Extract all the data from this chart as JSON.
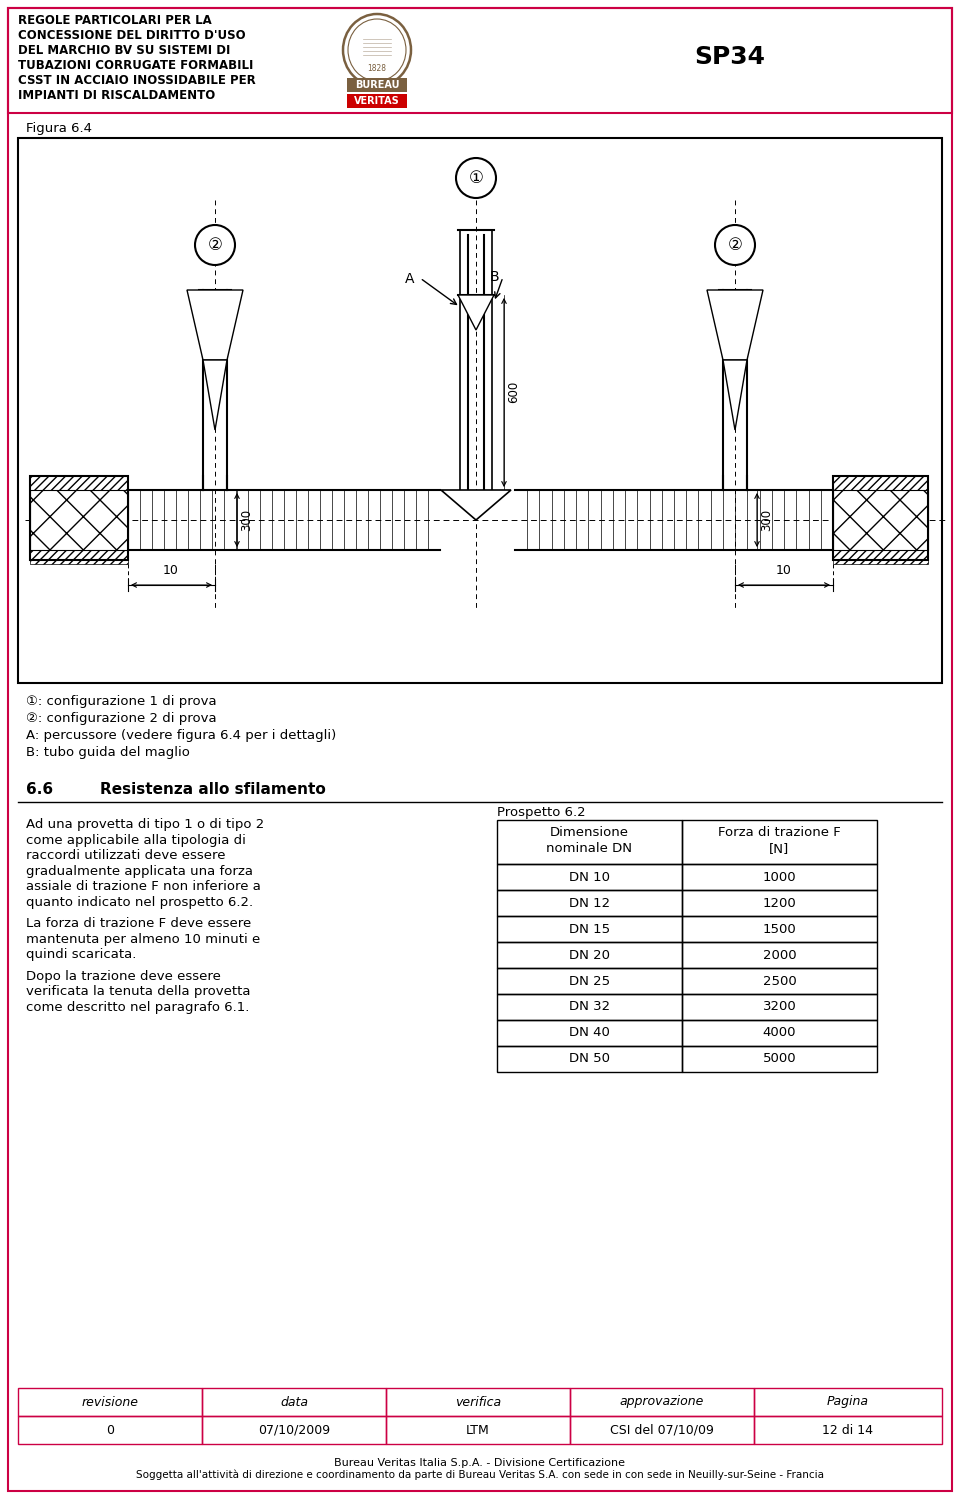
{
  "page_width": 9.6,
  "page_height": 14.99,
  "bg_color": "#ffffff",
  "border_color": "#cc0044",
  "header_text": "REGOLE PARTICOLARI PER LA\nCONCESSIONE DEL DIRITTO D'USO\nDEL MARCHIO BV SU SISTEMI DI\nTUBAZIONI CORRUGATE FORMABILI\nCSST IN ACCIAIO INOSSIDABILE PER\nIMPIANTI DI RISCALDAMENTO",
  "sp_code": "SP34",
  "figure_label": "Figura 6.4",
  "legend_lines": [
    "①: configurazione 1 di prova",
    "②: configurazione 2 di prova",
    "A: percussore (vedere figura 6.4 per i dettagli)",
    "B: tubo guida del maglio"
  ],
  "section_title": "6.6",
  "section_title2": "Resistenza allo sfilamento",
  "body_paragraphs": [
    "Ad una provetta di tipo 1 o di tipo 2 come applicabile alla tipologia di raccordi utilizzati deve essere gradualmente applicata una forza assiale di trazione F non inferiore a quanto indicato nel prospetto 6.2.",
    "La forza di trazione F deve essere mantenuta per almeno 10 minuti e quindi scaricata.",
    "Dopo la trazione deve essere verificata la tenuta della provetta come descritto nel paragrafo 6.1."
  ],
  "table_title": "Prospetto 6.2",
  "table_headers": [
    "Dimensione\nnominale DN",
    "Forza di trazione F\n[N]"
  ],
  "table_rows": [
    [
      "DN 10",
      "1000"
    ],
    [
      "DN 12",
      "1200"
    ],
    [
      "DN 15",
      "1500"
    ],
    [
      "DN 20",
      "2000"
    ],
    [
      "DN 25",
      "2500"
    ],
    [
      "DN 32",
      "3200"
    ],
    [
      "DN 40",
      "4000"
    ],
    [
      "DN 50",
      "5000"
    ]
  ],
  "footer_headers": [
    "revisione",
    "data",
    "verifica",
    "approvazione",
    "Pagina"
  ],
  "footer_values": [
    "0",
    "07/10/2009",
    "LTM",
    "CSI del 07/10/09",
    "12 di 14"
  ],
  "footer_note1": "Bureau Veritas Italia S.p.A. - Divisione Certificazione",
  "footer_note2": "Soggetta all'attività di direzione e coordinamento da parte di Bureau Veritas S.A. con sede in con sede in Neuilly-sur-Seine - Francia"
}
